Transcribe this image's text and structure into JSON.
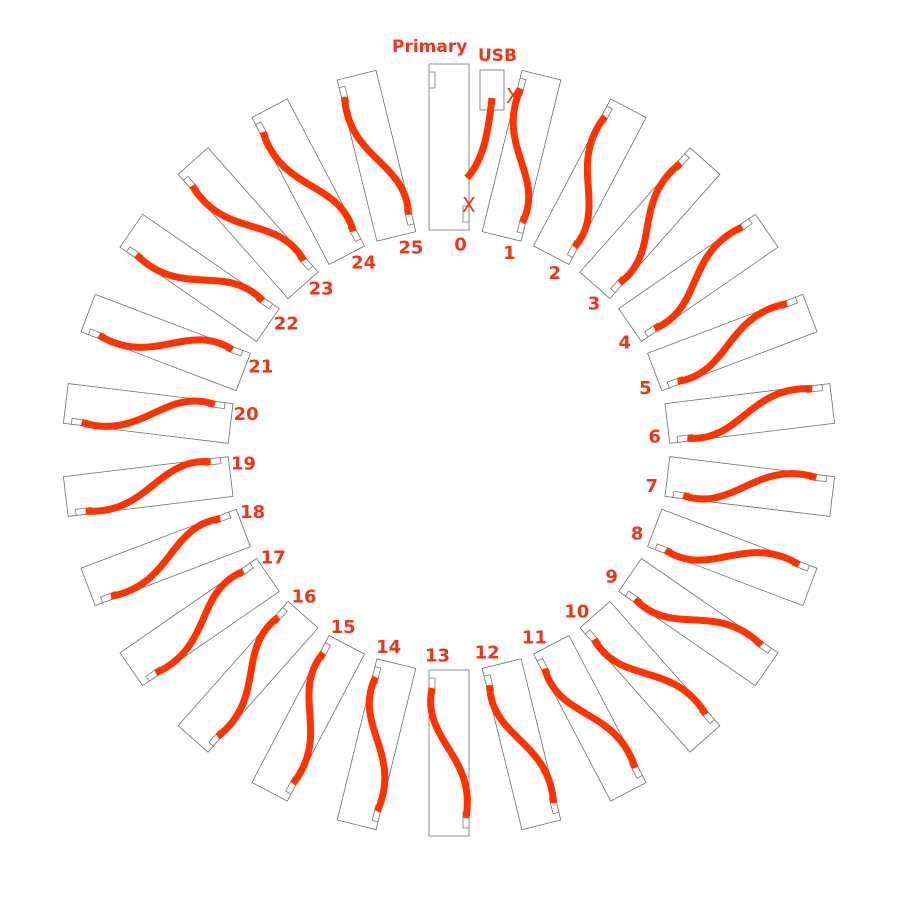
{
  "labels": {
    "primary": "Primary",
    "usb": "USB",
    "no_connection_mark": "X"
  },
  "positions": [
    "0",
    "1",
    "2",
    "3",
    "4",
    "5",
    "6",
    "7",
    "8",
    "9",
    "10",
    "11",
    "12",
    "13",
    "14",
    "15",
    "16",
    "17",
    "18",
    "19",
    "20",
    "21",
    "22",
    "23",
    "24",
    "25"
  ],
  "colors": {
    "wire": "#ff3300",
    "label": "#f0341a",
    "panel_stroke": "#6e6e6e"
  }
}
